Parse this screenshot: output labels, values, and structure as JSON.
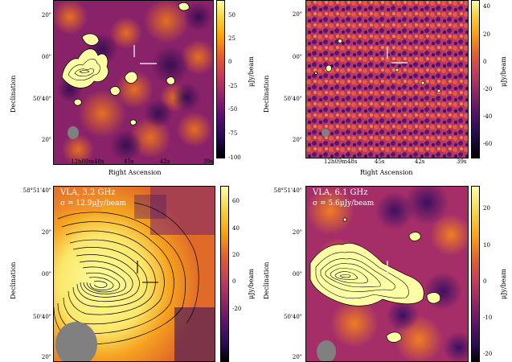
{
  "panels": [
    {
      "id": "top-left",
      "title": "",
      "sigma": "",
      "yticks": [
        "20\"",
        "00\"",
        "50'40\"",
        "20\""
      ],
      "xticks": [
        "12h09m48s",
        "45s",
        "42s",
        "39s"
      ],
      "xlabel": "Right Ascension",
      "ylabel": "Declination",
      "cbar_ticks": [
        "50",
        "25",
        "0",
        "-25",
        "-50",
        "-75",
        "-100"
      ],
      "cbar_label": "μJy/beam",
      "colors": {
        "low": "#1e0c3f",
        "mid": "#c33b5e",
        "high": "#fcffa4"
      }
    },
    {
      "id": "top-right",
      "title": "",
      "sigma": "",
      "yticks": [
        "20\"",
        "00\"",
        "50'40\"",
        "20\""
      ],
      "xticks": [
        "12h09m48s",
        "45s",
        "42s",
        "39s"
      ],
      "xlabel": "Right Ascension",
      "ylabel": "Declination",
      "cbar_ticks": [
        "40",
        "20",
        "0",
        "-20",
        "-40",
        "-60"
      ],
      "cbar_label": "μJy/beam"
    },
    {
      "id": "bottom-left",
      "title": "VLA, 3.2 GHz",
      "sigma": "σ = 12.9μJy/beam",
      "top_ytick": "58°51'40\"",
      "yticks": [
        "20\"",
        "00\"",
        "50'40\"",
        "20\""
      ],
      "ylabel": "Declination",
      "cbar_ticks": [
        "60",
        "40",
        "20",
        "0",
        "-20"
      ],
      "cbar_label": "μJy/beam"
    },
    {
      "id": "bottom-right",
      "title": "VLA, 6.1 GHz",
      "sigma": "σ = 5.6μJy/beam",
      "top_ytick": "58°51'40\"",
      "yticks": [
        "20\"",
        "00\"",
        "50'40\"",
        "20\""
      ],
      "ylabel": "Declination",
      "cbar_ticks": [
        "20",
        "10",
        "0",
        "-10",
        "-20"
      ],
      "cbar_label": "μJy/beam"
    }
  ]
}
